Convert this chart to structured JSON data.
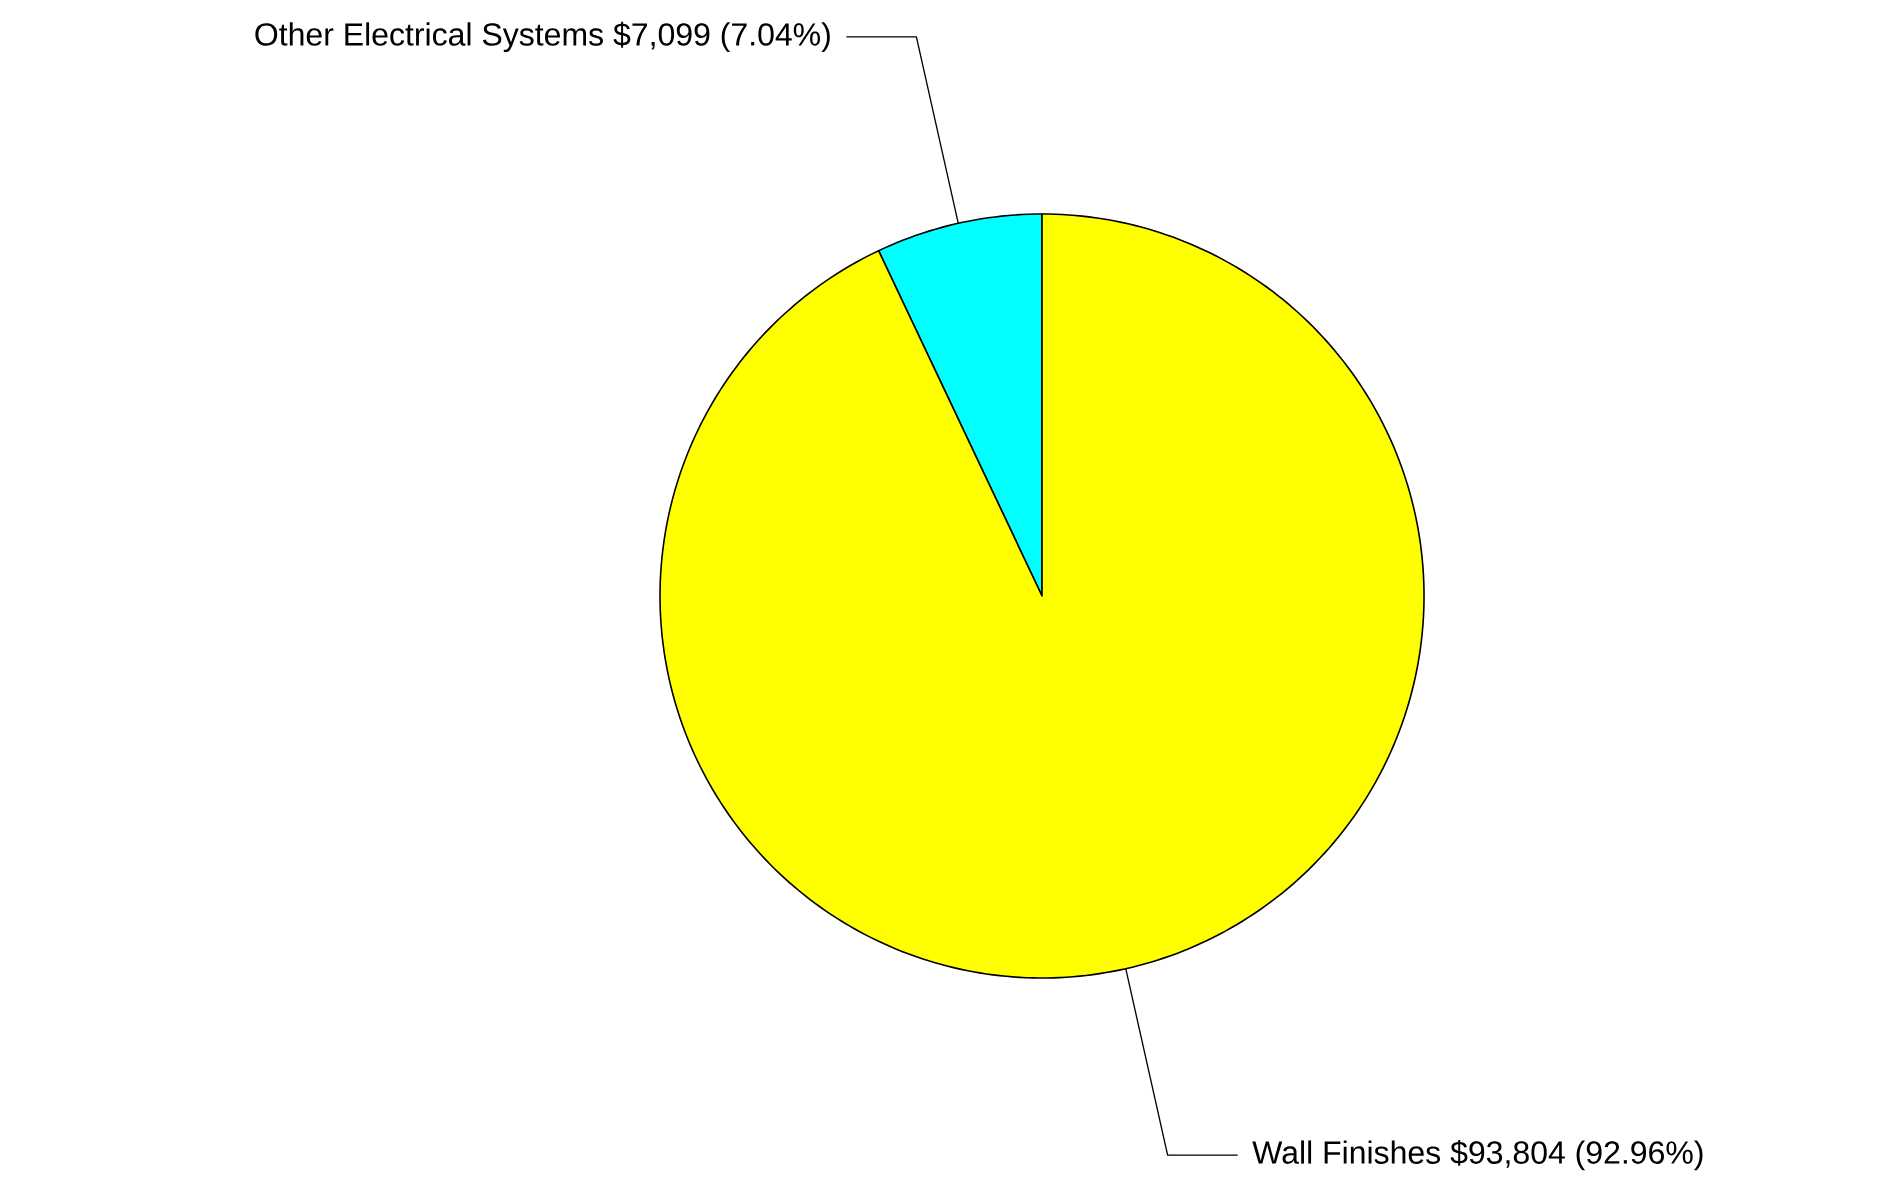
{
  "chart_data": {
    "type": "pie",
    "categories": [
      "Other Electrical Systems",
      "Wall Finishes"
    ],
    "values": [
      7099,
      93804
    ],
    "colors": [
      "#00ffff",
      "#ffff00"
    ],
    "value_labels": [
      "$7,099 (7.04%)",
      "$93,804 (92.96%)"
    ]
  }
}
